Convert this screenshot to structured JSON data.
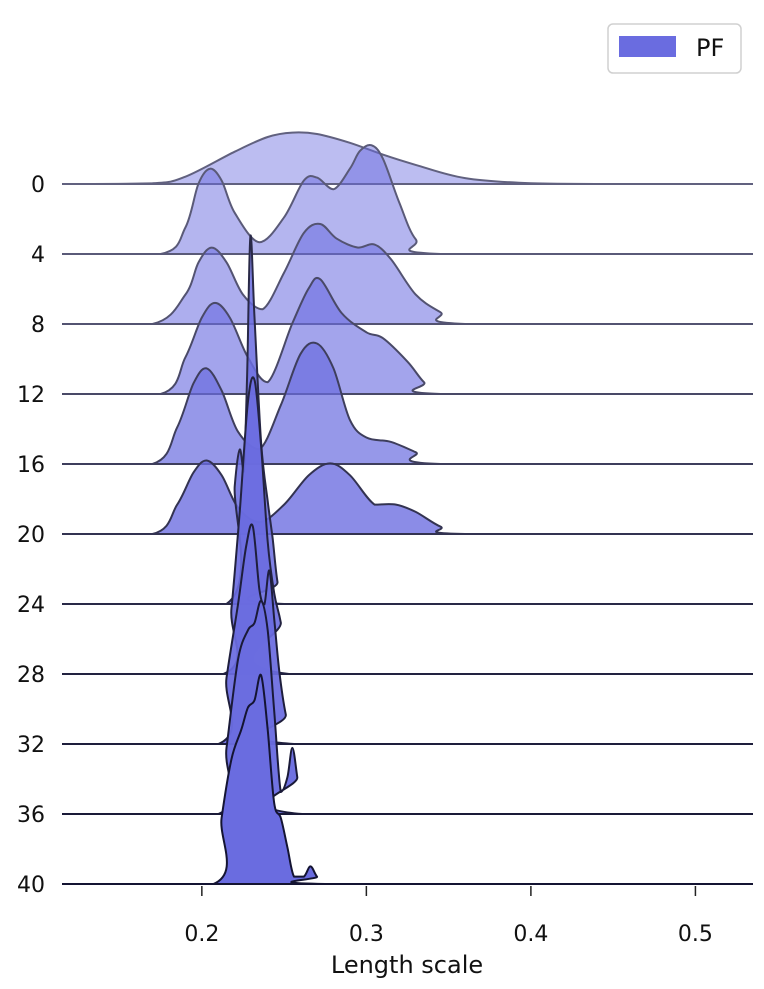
{
  "chart_data": {
    "type": "area",
    "subtype": "ridgeline",
    "title": "",
    "xlabel": "Length scale",
    "ylabel": "",
    "xlim": [
      0.115,
      0.535
    ],
    "x_ticks": [
      0.2,
      0.3,
      0.4,
      0.5
    ],
    "x_tick_labels": [
      "0.2",
      "0.3",
      "0.4",
      "0.5"
    ],
    "grid": false,
    "legend": {
      "placement": "top-right",
      "entries": [
        {
          "label": "PF",
          "color": "#6a6ce0"
        }
      ]
    },
    "fill_color": "#6a6ce0",
    "series": [
      {
        "label": "0",
        "opacity": 0.45,
        "x": [
          0.115,
          0.17,
          0.19,
          0.22,
          0.24,
          0.255,
          0.27,
          0.29,
          0.31,
          0.33,
          0.36,
          0.4,
          0.45,
          0.535
        ],
        "y": [
          0,
          0.005,
          0.05,
          0.22,
          0.32,
          0.35,
          0.34,
          0.28,
          0.2,
          0.13,
          0.04,
          0.005,
          0,
          0
        ]
      },
      {
        "label": "4",
        "opacity": 0.5,
        "x": [
          0.115,
          0.175,
          0.19,
          0.198,
          0.205,
          0.212,
          0.22,
          0.235,
          0.25,
          0.262,
          0.27,
          0.28,
          0.29,
          0.296,
          0.303,
          0.31,
          0.32,
          0.33,
          0.345,
          0.535
        ],
        "y": [
          0,
          0,
          0.18,
          0.48,
          0.58,
          0.5,
          0.28,
          0.08,
          0.25,
          0.5,
          0.52,
          0.44,
          0.58,
          0.7,
          0.74,
          0.65,
          0.35,
          0.1,
          0,
          0
        ]
      },
      {
        "label": "8",
        "opacity": 0.55,
        "x": [
          0.115,
          0.17,
          0.19,
          0.198,
          0.206,
          0.215,
          0.225,
          0.237,
          0.25,
          0.262,
          0.272,
          0.282,
          0.295,
          0.305,
          0.315,
          0.33,
          0.345,
          0.36,
          0.535
        ],
        "y": [
          0,
          0,
          0.2,
          0.42,
          0.52,
          0.42,
          0.2,
          0.1,
          0.35,
          0.62,
          0.68,
          0.58,
          0.52,
          0.54,
          0.44,
          0.2,
          0.08,
          0,
          0
        ]
      },
      {
        "label": "12",
        "opacity": 0.62,
        "x": [
          0.115,
          0.175,
          0.19,
          0.2,
          0.208,
          0.217,
          0.228,
          0.24,
          0.255,
          0.265,
          0.272,
          0.285,
          0.3,
          0.31,
          0.325,
          0.335,
          0.345,
          0.535
        ],
        "y": [
          0,
          0,
          0.25,
          0.52,
          0.62,
          0.52,
          0.25,
          0.08,
          0.48,
          0.72,
          0.78,
          0.55,
          0.42,
          0.38,
          0.22,
          0.08,
          0,
          0
        ]
      },
      {
        "label": "16",
        "opacity": 0.7,
        "x": [
          0.115,
          0.17,
          0.185,
          0.195,
          0.203,
          0.212,
          0.222,
          0.235,
          0.248,
          0.26,
          0.27,
          0.28,
          0.29,
          0.3,
          0.315,
          0.33,
          0.345,
          0.535
        ],
        "y": [
          0,
          0,
          0.25,
          0.55,
          0.65,
          0.5,
          0.22,
          0.1,
          0.4,
          0.75,
          0.82,
          0.65,
          0.3,
          0.18,
          0.15,
          0.08,
          0,
          0
        ]
      },
      {
        "label": "20",
        "opacity": 0.78,
        "x": [
          0.115,
          0.17,
          0.185,
          0.195,
          0.203,
          0.212,
          0.222,
          0.235,
          0.25,
          0.265,
          0.278,
          0.29,
          0.305,
          0.318,
          0.33,
          0.345,
          0.36,
          0.535
        ],
        "y": [
          0,
          0,
          0.2,
          0.42,
          0.5,
          0.4,
          0.18,
          0.08,
          0.2,
          0.4,
          0.48,
          0.4,
          0.2,
          0.2,
          0.15,
          0.05,
          0,
          0
        ]
      },
      {
        "label": "24",
        "opacity": 0.85,
        "x": [
          0.115,
          0.215,
          0.22,
          0.223,
          0.2255,
          0.2275,
          0.2295,
          0.232,
          0.236,
          0.24,
          0.243,
          0.246,
          0.25,
          0.535
        ],
        "y": [
          0,
          0,
          0.8,
          1.05,
          0.9,
          1.55,
          2.5,
          1.95,
          1.1,
          0.7,
          0.45,
          0.15,
          0,
          0
        ]
      },
      {
        "label": "28",
        "opacity": 0.9,
        "x": [
          0.115,
          0.213,
          0.218,
          0.223,
          0.228,
          0.232,
          0.236,
          0.24,
          0.244,
          0.248,
          0.253,
          0.535
        ],
        "y": [
          0,
          0,
          0.45,
          1.1,
          1.85,
          2.0,
          1.55,
          0.9,
          0.55,
          0.35,
          0,
          0
        ]
      },
      {
        "label": "32",
        "opacity": 0.93,
        "x": [
          0.115,
          0.21,
          0.215,
          0.222,
          0.227,
          0.231,
          0.235,
          0.238,
          0.241,
          0.244,
          0.247,
          0.251,
          0.256,
          0.535
        ],
        "y": [
          0,
          0,
          0.45,
          0.95,
          1.35,
          1.48,
          1.05,
          0.95,
          1.18,
          0.85,
          0.5,
          0.2,
          0,
          0
        ]
      },
      {
        "label": "36",
        "opacity": 0.96,
        "x": [
          0.115,
          0.21,
          0.215,
          0.222,
          0.228,
          0.232,
          0.236,
          0.24,
          0.244,
          0.248,
          0.252,
          0.255,
          0.258,
          0.261,
          0.535
        ],
        "y": [
          0,
          0,
          0.45,
          1.05,
          1.25,
          1.3,
          1.45,
          1.25,
          0.7,
          0.15,
          0.25,
          0.45,
          0.25,
          0,
          0
        ]
      },
      {
        "label": "40",
        "opacity": 1.0,
        "x": [
          0.115,
          0.207,
          0.212,
          0.218,
          0.224,
          0.228,
          0.232,
          0.236,
          0.24,
          0.244,
          0.248,
          0.252,
          0.256,
          0.262,
          0.266,
          0.27,
          0.275,
          0.535
        ],
        "y": [
          0,
          0,
          0.45,
          0.85,
          1.05,
          1.2,
          1.25,
          1.42,
          1.05,
          0.55,
          0.45,
          0.25,
          0.05,
          0.05,
          0.12,
          0.05,
          0,
          0
        ]
      }
    ]
  }
}
